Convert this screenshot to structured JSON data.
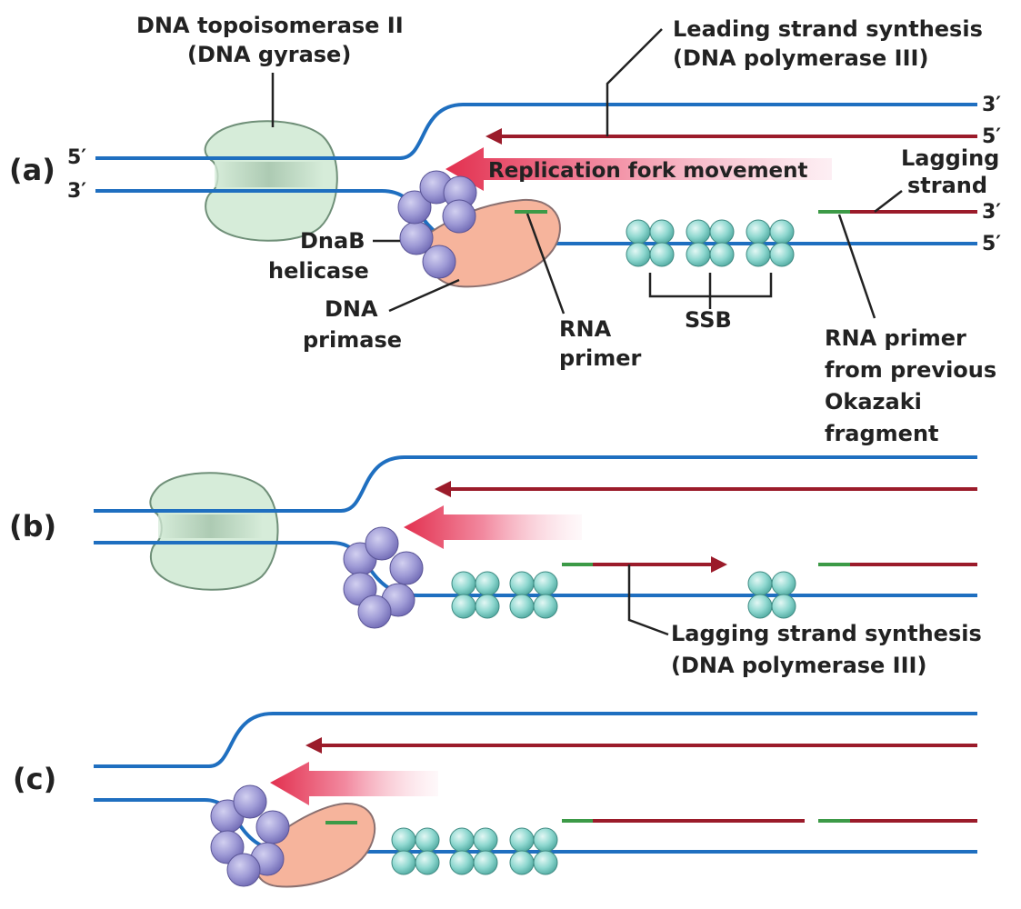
{
  "colors": {
    "template_strand": "#1f6fc0",
    "new_strand": "#9b1b2a",
    "rna_primer": "#3c9a47",
    "gyrase_fill": "#d6ecd9",
    "gyrase_stroke": "#6f8f78",
    "helicase_fill": "#9f9bd6",
    "primase_fill": "#f6b49c",
    "ssb_fill": "#8fd8d0",
    "fork_arrow": "#e2304f",
    "label_text": "#222222"
  },
  "panels": {
    "a": "(a)",
    "b": "(b)",
    "c": "(c)"
  },
  "strand_ends": {
    "a_top_left_5": "5′",
    "a_bottom_left_3": "3′",
    "a_top_right_3": "3′",
    "a_leading_right_5": "5′",
    "a_lagging_right_3": "3′",
    "a_bottom_right_5": "5′"
  },
  "labels": {
    "topoisomerase_line1": "DNA topoisomerase II",
    "topoisomerase_line2": "(DNA gyrase)",
    "leading_line1": "Leading strand synthesis",
    "leading_line2": "(DNA polymerase III)",
    "fork_movement": "Replication fork movement",
    "lagging_line1": "Lagging",
    "lagging_line2": "strand",
    "dnab_line1": "DnaB",
    "dnab_line2": "helicase",
    "primase_line1": "DNA",
    "primase_line2": "primase",
    "rna_primer_line1": "RNA",
    "rna_primer_line2": "primer",
    "ssb": "SSB",
    "prev_primer_line1": "RNA primer",
    "prev_primer_line2": "from previous",
    "prev_primer_line3": "Okazaki",
    "prev_primer_line4": "fragment",
    "lagging_synth_line1": "Lagging strand synthesis",
    "lagging_synth_line2": "(DNA polymerase III)"
  }
}
